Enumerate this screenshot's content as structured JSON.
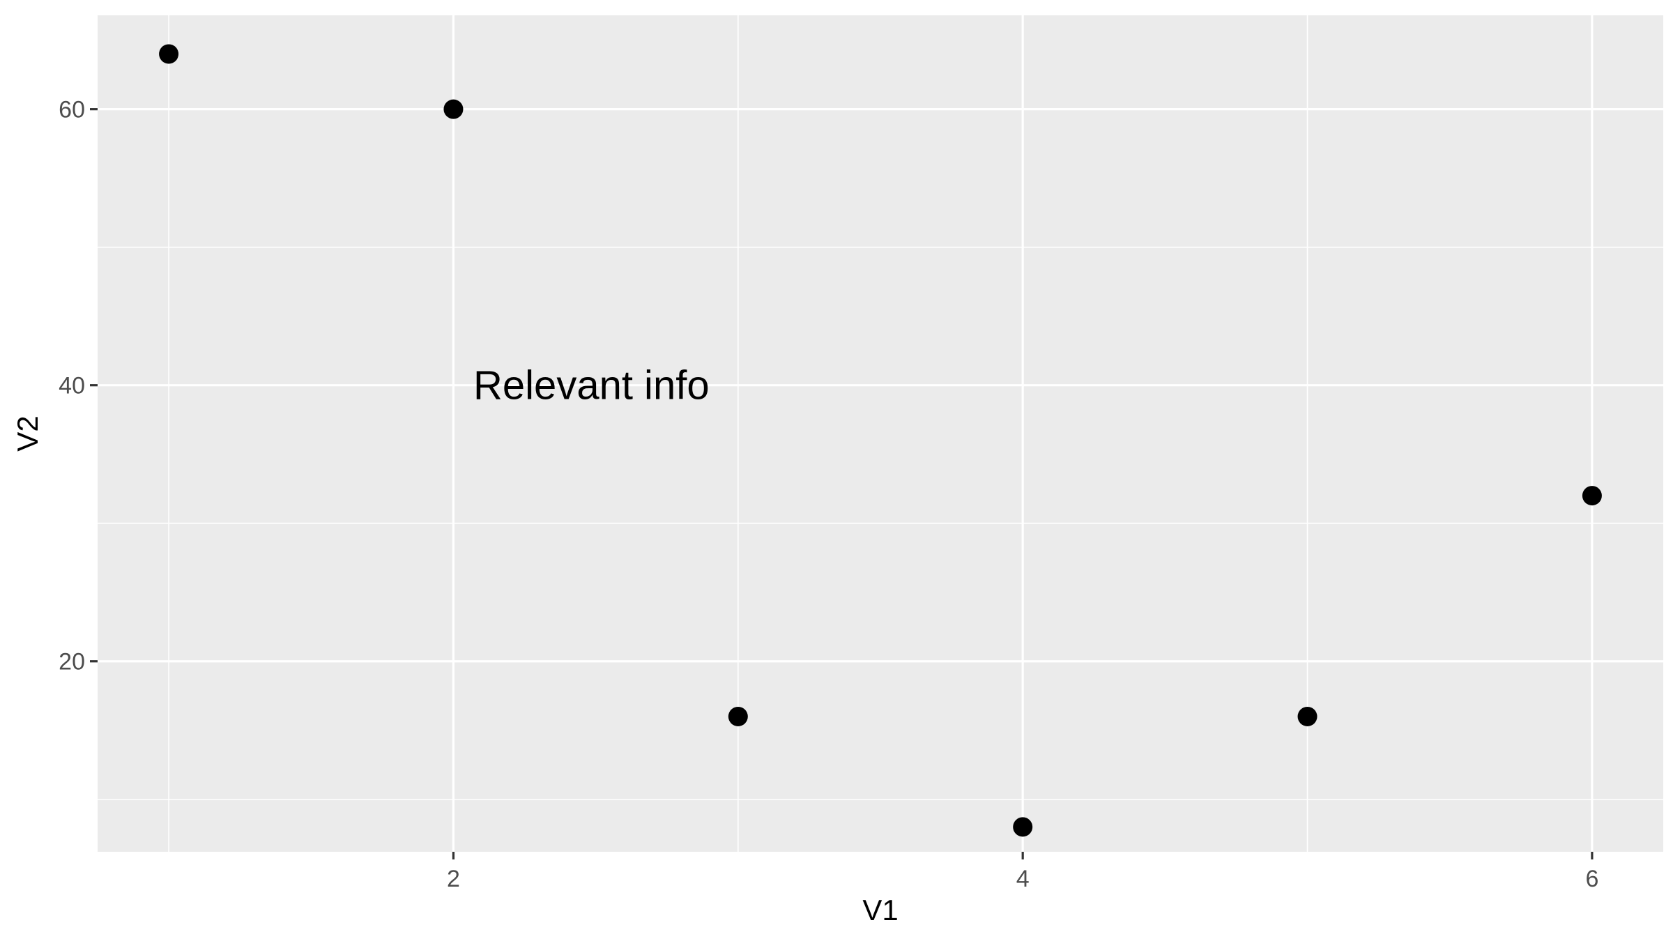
{
  "chart_data": {
    "type": "scatter",
    "title": "",
    "xlabel": "V1",
    "ylabel": "V2",
    "xlim": [
      0.75,
      6.25
    ],
    "ylim": [
      6.2,
      66.8
    ],
    "x_ticks": [
      2,
      4,
      6
    ],
    "x_minor_ticks": [
      1,
      3,
      5
    ],
    "y_ticks": [
      20,
      40,
      60
    ],
    "y_minor_ticks": [
      10,
      30,
      50
    ],
    "grid": true,
    "legend": "none",
    "points": [
      {
        "x": 1,
        "y": 64
      },
      {
        "x": 2,
        "y": 60
      },
      {
        "x": 3,
        "y": 16
      },
      {
        "x": 4,
        "y": 8
      },
      {
        "x": 5,
        "y": 16
      },
      {
        "x": 6,
        "y": 32
      }
    ],
    "annotations": [
      {
        "text": "Relevant info",
        "x": 2.07,
        "y": 40
      }
    ],
    "colors": {
      "panel": "#ebebeb",
      "grid": "#ffffff",
      "point": "#000000",
      "tick_text": "#4d4d4d",
      "axis_title": "#000000"
    }
  }
}
